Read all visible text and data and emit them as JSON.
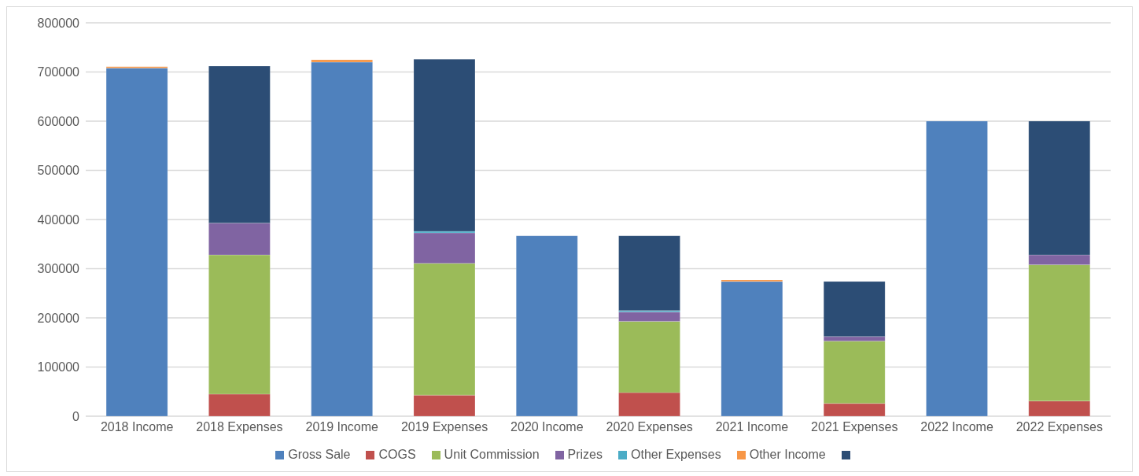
{
  "chart_data": {
    "type": "bar",
    "stacked": true,
    "categories": [
      "2018 Income",
      "2018 Expenses",
      "2019 Income",
      "2019 Expenses",
      "2020 Income",
      "2020 Expenses",
      "2021 Income",
      "2021 Expenses",
      "2022 Income",
      "2022 Expenses"
    ],
    "series": [
      {
        "name": "Gross Sale",
        "color": "#4f81bd",
        "values": [
          708000,
          null,
          720000,
          null,
          367000,
          null,
          274000,
          null,
          600000,
          null
        ]
      },
      {
        "name": "COGS",
        "color": "#c0504d",
        "values": [
          null,
          45000,
          null,
          43000,
          null,
          48000,
          null,
          26000,
          null,
          31000
        ]
      },
      {
        "name": "Unit Commission",
        "color": "#9bbb59",
        "values": [
          null,
          283000,
          null,
          268000,
          null,
          145000,
          null,
          127000,
          null,
          277000
        ]
      },
      {
        "name": "Prizes",
        "color": "#8064a2",
        "values": [
          null,
          65000,
          null,
          62000,
          null,
          19000,
          null,
          9000,
          null,
          20000
        ]
      },
      {
        "name": "Other Expenses",
        "color": "#4bacc6",
        "values": [
          null,
          null,
          null,
          3000,
          null,
          3000,
          null,
          null,
          null,
          null
        ]
      },
      {
        "name": "Other Income",
        "color": "#f79646",
        "values": [
          3000,
          null,
          5000,
          null,
          null,
          null,
          3000,
          null,
          null,
          null
        ]
      },
      {
        "color": "#2c4d75",
        "values": [
          null,
          319000,
          null,
          350000,
          null,
          152000,
          null,
          112000,
          null,
          272000
        ]
      }
    ],
    "ylim": [
      0,
      800000
    ],
    "yticks": [
      0,
      100000,
      200000,
      300000,
      400000,
      500000,
      600000,
      700000,
      800000
    ],
    "grid": "y",
    "legend": "bottom"
  }
}
